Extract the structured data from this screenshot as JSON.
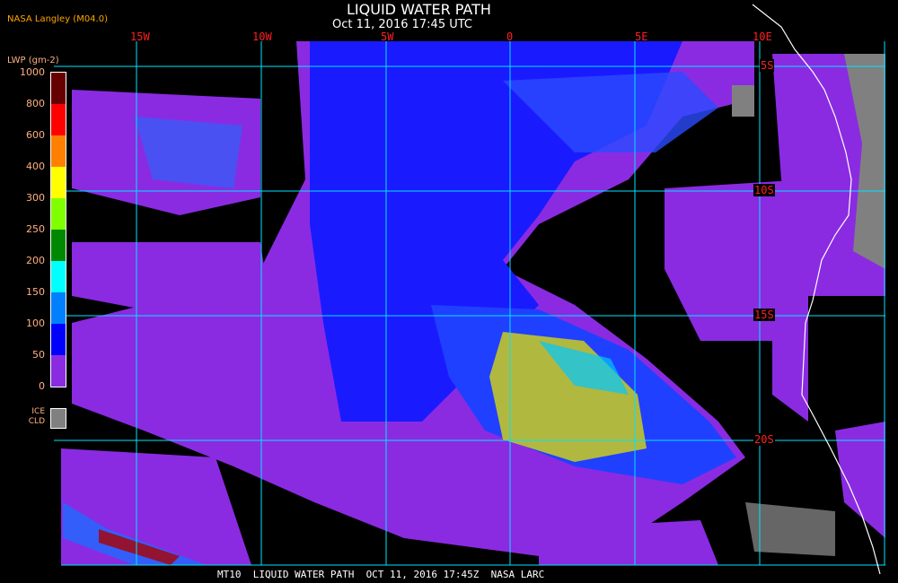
{
  "header": {
    "title": "LIQUID WATER PATH",
    "subtitle": "Oct 11, 2016 17:45 UTC",
    "credit": "NASA Langley (M04.0)"
  },
  "map": {
    "longitude_labels": [
      "15W",
      "10W",
      "5W",
      "0",
      "5E",
      "10E"
    ],
    "latitude_labels": [
      "5S",
      "10S",
      "15S",
      "20S"
    ],
    "gridline_color": "#00e5ff",
    "coastline_color": "#ffffff"
  },
  "legend": {
    "title": "LWP (gm-2)",
    "ticks": [
      "1000",
      "800",
      "600",
      "400",
      "300",
      "250",
      "200",
      "150",
      "100",
      "50",
      "0"
    ],
    "colors": [
      "#660000",
      "#ff0000",
      "#ff8000",
      "#ffff00",
      "#80ff00",
      "#008800",
      "#00ffff",
      "#0080ff",
      "#0000ff",
      "#8a2be2"
    ],
    "ice_label": "ICE CLD",
    "ice_color": "#808080"
  },
  "footer": {
    "text": "MT10  LIQUID WATER PATH  OCT 11, 2016 17:45Z  NASA LARC"
  }
}
